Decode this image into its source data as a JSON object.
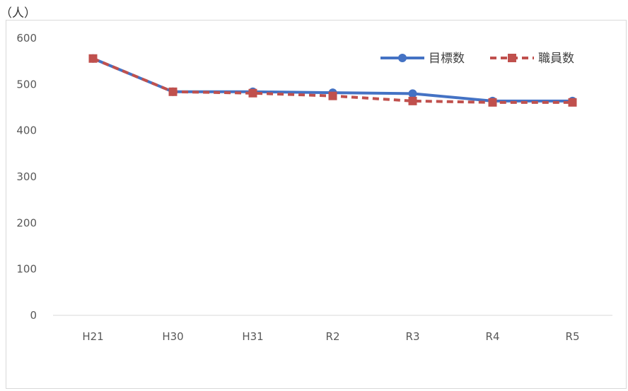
{
  "chart_data": {
    "type": "line",
    "unit_label": "（人）",
    "categories": [
      "H21",
      "H30",
      "H31",
      "R2",
      "R3",
      "R4",
      "R5"
    ],
    "ylim": [
      0,
      600
    ],
    "y_ticks": [
      0,
      100,
      200,
      300,
      400,
      500,
      600
    ],
    "grid": false,
    "legend_position": "top-right",
    "series": [
      {
        "name": "目標数",
        "color": "#4472c4",
        "style": "solid-circle",
        "values": [
          556,
          484,
          484,
          482,
          480,
          464,
          464
        ]
      },
      {
        "name": "職員数",
        "color": "#c0504d",
        "style": "dashed-square",
        "values": [
          556,
          484,
          481,
          475,
          464,
          461,
          461
        ]
      }
    ]
  }
}
